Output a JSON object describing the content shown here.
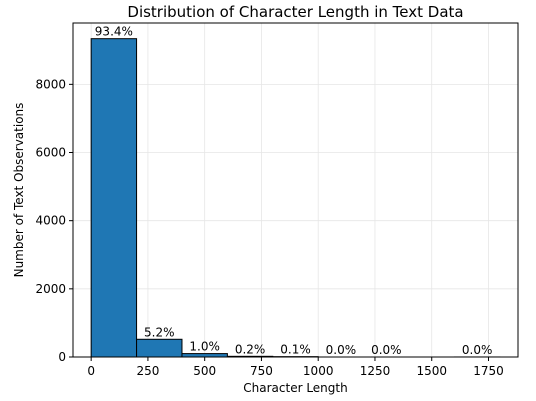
{
  "chart_data": {
    "type": "bar",
    "title": "Distribution of Character Length in Text Data",
    "xlabel": "Character Length",
    "ylabel": "Number of Text Observations",
    "bins": [
      {
        "start": 0,
        "end": 200,
        "count": 9340,
        "label": "93.4%"
      },
      {
        "start": 200,
        "end": 400,
        "count": 520,
        "label": "5.2%"
      },
      {
        "start": 400,
        "end": 600,
        "count": 100,
        "label": "1.0%"
      },
      {
        "start": 600,
        "end": 800,
        "count": 20,
        "label": "0.2%"
      },
      {
        "start": 800,
        "end": 1000,
        "count": 10,
        "label": "0.1%"
      },
      {
        "start": 1000,
        "end": 1200,
        "count": 0,
        "label": "0.0%"
      },
      {
        "start": 1200,
        "end": 1400,
        "count": 0,
        "label": "0.0%"
      },
      {
        "start": 1400,
        "end": 1600,
        "count": 0,
        "label": null
      },
      {
        "start": 1600,
        "end": 1800,
        "count": 1,
        "label": "0.0%"
      }
    ],
    "xticks": [
      0,
      250,
      500,
      750,
      1000,
      1250,
      1500,
      1750
    ],
    "yticks": [
      0,
      2000,
      4000,
      6000,
      8000
    ],
    "xlim": [
      -80,
      1880
    ],
    "ylim": [
      0,
      9800
    ],
    "grid": true,
    "bar_color": "#1f77b4",
    "edge_color": "#000000"
  }
}
